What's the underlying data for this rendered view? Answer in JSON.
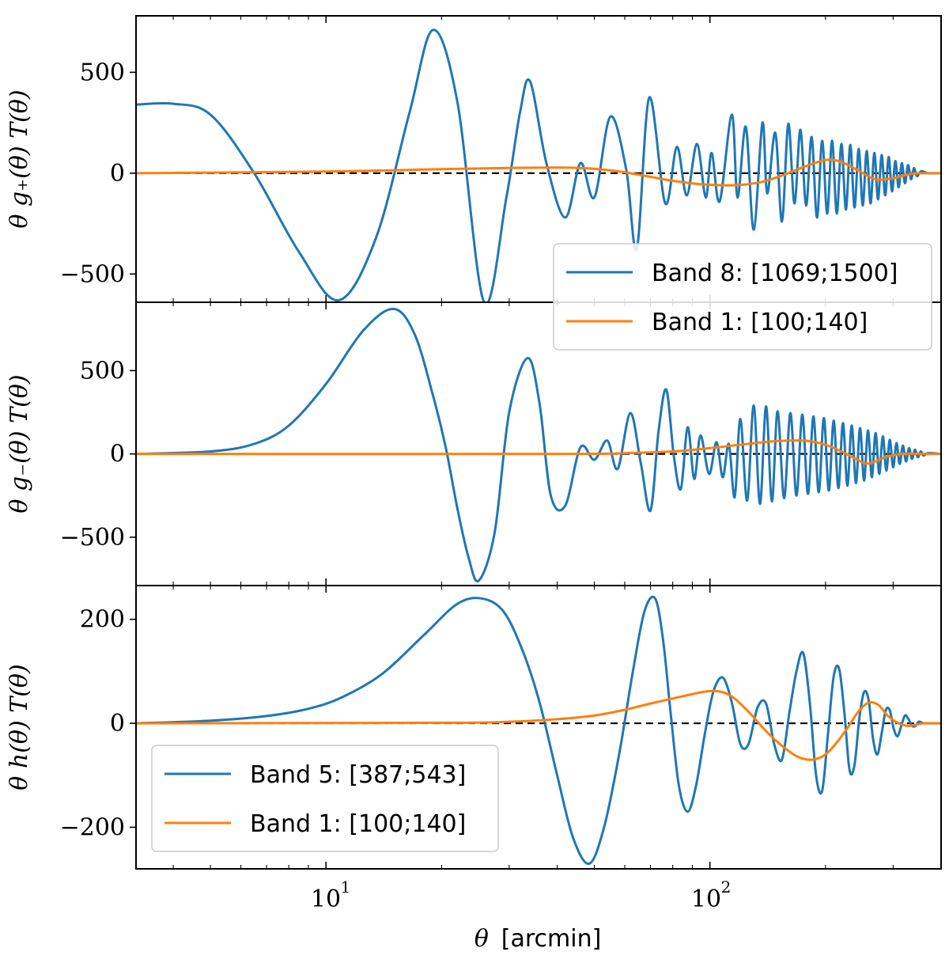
{
  "figure": {
    "xlabel_symbol": "θ",
    "xlabel_unit": "[arcmin]"
  },
  "colors": {
    "blue": "#1f77b4",
    "orange": "#ff7f0e",
    "zero": "#000000"
  },
  "chart_data": [
    {
      "type": "line",
      "panel": "top",
      "ylabel": "θ g₊(θ) T(θ)",
      "xscale": "log",
      "xlim": [
        3.2,
        400
      ],
      "ylim": [
        -640,
        780
      ],
      "yticks": [
        -500,
        0,
        500
      ],
      "ytick_labels": [
        "−500",
        "0",
        "500"
      ],
      "legend": {
        "placement": "lower-right",
        "entries": [
          "Band 8: [1069;1500]",
          "Band 1: [100;140]"
        ]
      },
      "series": [
        {
          "name": "Band 8: [1069;1500]",
          "color": "blue",
          "x": [
            3.2,
            4.0,
            5.0,
            6.5,
            8.5,
            10.8,
            13.5,
            16.5,
            19.0,
            22.0,
            25.8,
            29.5,
            32.0,
            34.0,
            37.5,
            42.0,
            46.0,
            50.0,
            55.0,
            60.5,
            64.5,
            69.5,
            76.5,
            82.0,
            87.0,
            92.5,
            97.5,
            101.0,
            106.0,
            114.0,
            118.0,
            124.0,
            130.0,
            137.0,
            141.0,
            148.0,
            154.0,
            160.0,
            166.0,
            172.0,
            178.0,
            184.0,
            190.0,
            196.0,
            202.0,
            208.0,
            214.0,
            220.0,
            226.0,
            232.0,
            238.0,
            244.0,
            250.0,
            256.0,
            262.0,
            268.0,
            274.0,
            280.0,
            286.0,
            292.0,
            298.0,
            304.0,
            310.0,
            316.0,
            322.0,
            328.0,
            334.0,
            340.0,
            346.0,
            355.0,
            370.0,
            400.0
          ],
          "y": [
            340,
            344,
            290,
            0,
            -390,
            -630,
            -320,
            300,
            710,
            350,
            -640,
            -120,
            300,
            455,
            50,
            -220,
            50,
            -120,
            280,
            20,
            -375,
            375,
            -150,
            130,
            -110,
            145,
            -120,
            100,
            -140,
            290,
            -120,
            230,
            -280,
            250,
            -100,
            200,
            -240,
            245,
            -150,
            215,
            -160,
            180,
            -220,
            160,
            -200,
            160,
            -200,
            145,
            -180,
            140,
            -170,
            120,
            -160,
            110,
            -150,
            100,
            -130,
            90,
            -110,
            80,
            -90,
            60,
            -70,
            50,
            -50,
            40,
            -30,
            25,
            -15,
            10,
            0,
            0
          ]
        },
        {
          "name": "Band 1: [100;140]",
          "color": "orange",
          "x": [
            3.2,
            10,
            20,
            30,
            40,
            48,
            55,
            62,
            70,
            80,
            95,
            115,
            135,
            155,
            175,
            200,
            220,
            245,
            270,
            300,
            330,
            360,
            400
          ],
          "y": [
            0,
            8,
            20,
            26,
            28,
            24,
            14,
            0,
            -18,
            -38,
            -55,
            -60,
            -45,
            -10,
            30,
            65,
            55,
            10,
            -30,
            -25,
            -5,
            0,
            0
          ]
        }
      ]
    },
    {
      "type": "line",
      "panel": "middle",
      "ylabel": "θ g₋(θ) T(θ)",
      "xscale": "log",
      "xlim": [
        3.2,
        400
      ],
      "ylim": [
        -790,
        910
      ],
      "yticks": [
        -500,
        0,
        500
      ],
      "ytick_labels": [
        "−500",
        "0",
        "500"
      ],
      "series": [
        {
          "name": "Band 8: [1069;1500]",
          "color": "blue",
          "x": [
            3.2,
            5.0,
            6.5,
            8.0,
            10.0,
            12.5,
            15.0,
            17.0,
            19.0,
            20.5,
            22.0,
            23.5,
            25.0,
            27.5,
            30.0,
            33.5,
            36.0,
            38.5,
            42.0,
            46.0,
            50.0,
            54.0,
            57.5,
            62.0,
            66.0,
            70.0,
            73.5,
            77.0,
            80.5,
            84.0,
            87.5,
            91.0,
            94.5,
            99.5,
            104.0,
            108.0,
            112.0,
            116.0,
            120.0,
            125.0,
            130.0,
            135.0,
            140.0,
            145.0,
            150.0,
            156.0,
            162.0,
            168.0,
            174.0,
            180.0,
            186.0,
            192.0,
            198.0,
            204.0,
            210.0,
            216.0,
            222.0,
            228.0,
            234.0,
            240.0,
            246.0,
            252.0,
            258.0,
            264.0,
            270.0,
            276.0,
            282.0,
            288.0,
            294.0,
            300.0,
            306.0,
            312.0,
            318.0,
            324.0,
            330.0,
            336.0,
            342.0,
            348.0,
            354.0,
            360.0,
            370.0,
            400.0
          ],
          "y": [
            0,
            15,
            60,
            170,
            420,
            740,
            870,
            720,
            350,
            40,
            -330,
            -620,
            -760,
            -470,
            250,
            575,
            300,
            -250,
            -310,
            40,
            -35,
            80,
            -90,
            245,
            -50,
            -340,
            140,
            385,
            -10,
            -210,
            160,
            -150,
            110,
            -120,
            70,
            -140,
            60,
            -260,
            210,
            -280,
            290,
            -300,
            285,
            -285,
            255,
            -265,
            245,
            -250,
            235,
            -240,
            225,
            -230,
            215,
            -220,
            200,
            -205,
            185,
            -190,
            170,
            -175,
            155,
            -160,
            140,
            -140,
            125,
            -120,
            105,
            -100,
            85,
            -80,
            65,
            -60,
            50,
            -45,
            35,
            -30,
            25,
            -20,
            15,
            -10,
            5,
            0
          ]
        },
        {
          "name": "Band 1: [100;140]",
          "color": "orange",
          "x": [
            3.2,
            40,
            60,
            80,
            100,
            120,
            140,
            160,
            180,
            200,
            220,
            240,
            255,
            270,
            290,
            320,
            350,
            400
          ],
          "y": [
            0,
            0,
            5,
            15,
            35,
            55,
            72,
            80,
            78,
            55,
            15,
            -30,
            -58,
            -45,
            -15,
            0,
            0,
            0
          ]
        }
      ]
    },
    {
      "type": "line",
      "panel": "bottom",
      "ylabel": "θ h(θ) T(θ)",
      "xscale": "log",
      "xlim": [
        3.2,
        400
      ],
      "xticks": [
        10,
        100
      ],
      "xtick_base": "10",
      "xtick_exponents": [
        "1",
        "2"
      ],
      "ylim": [
        -280,
        265
      ],
      "yticks": [
        -200,
        0,
        200
      ],
      "ytick_labels": [
        "−200",
        "0",
        "200"
      ],
      "legend": {
        "placement": "lower-left",
        "entries": [
          "Band 5: [387;543]",
          "Band 1: [100;140]"
        ]
      },
      "series": [
        {
          "name": "Band 5: [387;543]",
          "color": "blue",
          "x": [
            3.2,
            5.0,
            7.0,
            9.0,
            11.0,
            14.0,
            18.0,
            22.0,
            25.5,
            29.0,
            32.5,
            36.0,
            40.0,
            44.0,
            48.5,
            53.0,
            58.0,
            63.0,
            67.5,
            72.0,
            75.5,
            79.0,
            83.0,
            87.5,
            92.0,
            97.0,
            102.0,
            108.0,
            114.0,
            120.0,
            126.0,
            133.0,
            140.0,
            147.0,
            154.0,
            161.0,
            168.0,
            175.0,
            182.0,
            189.0,
            196.0,
            203.0,
            210.0,
            217.0,
            224.0,
            231.0,
            238.0,
            245.0,
            252.0,
            259.0,
            266.0,
            273.0,
            280.0,
            287.0,
            294.0,
            301.0,
            308.0,
            315.0,
            322.0,
            329.0,
            336.0,
            343.0,
            350.0,
            360.0,
            370.0,
            400.0
          ],
          "y": [
            0,
            5,
            14,
            28,
            50,
            95,
            170,
            230,
            240,
            215,
            140,
            40,
            -100,
            -220,
            -270,
            -200,
            -60,
            100,
            215,
            240,
            160,
            20,
            -120,
            -170,
            -120,
            -20,
            60,
            88,
            40,
            -40,
            -40,
            30,
            38,
            -40,
            -70,
            20,
            100,
            135,
            40,
            -100,
            -130,
            -20,
            90,
            105,
            20,
            -90,
            -80,
            10,
            60,
            45,
            -30,
            -60,
            -20,
            25,
            25,
            -10,
            -25,
            -5,
            15,
            8,
            -5,
            -5,
            3,
            0,
            0,
            0
          ]
        },
        {
          "name": "Band 1: [100;140]",
          "color": "orange",
          "x": [
            3.2,
            20,
            30,
            40,
            50,
            60,
            70,
            85,
            100,
            112,
            125,
            140,
            155,
            170,
            185,
            200,
            215,
            230,
            245,
            260,
            275,
            290,
            310,
            330,
            360,
            400
          ],
          "y": [
            0,
            1,
            3,
            8,
            15,
            26,
            38,
            52,
            62,
            55,
            25,
            -15,
            -45,
            -65,
            -70,
            -60,
            -35,
            -5,
            25,
            40,
            35,
            15,
            0,
            -5,
            0,
            0
          ]
        }
      ]
    }
  ]
}
